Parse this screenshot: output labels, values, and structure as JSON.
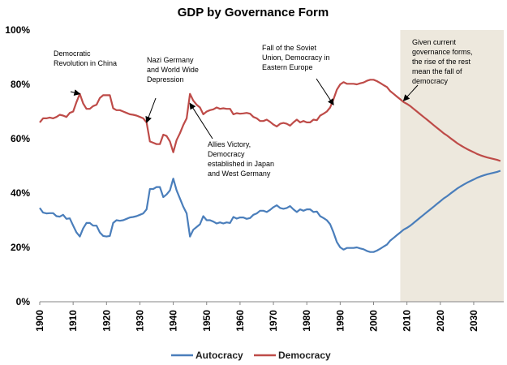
{
  "chart_data": {
    "type": "line",
    "title": "GDP by Governance Form",
    "xlabel": "",
    "ylabel": "",
    "xlim": [
      1900,
      2039
    ],
    "ylim": [
      0,
      100
    ],
    "y_tick_labels": [
      "0%",
      "20%",
      "40%",
      "60%",
      "80%",
      "100%"
    ],
    "y_tick_values": [
      0,
      20,
      40,
      60,
      80,
      100
    ],
    "x_tick_labels": [
      "1900",
      "1910",
      "1920",
      "1930",
      "1940",
      "1950",
      "1960",
      "1970",
      "1980",
      "1990",
      "2000",
      "2010",
      "2020",
      "2030"
    ],
    "x_tick_values": [
      1900,
      1910,
      1920,
      1930,
      1940,
      1950,
      1960,
      1970,
      1980,
      1990,
      2000,
      2010,
      2020,
      2030
    ],
    "grid": false,
    "legend_position": "bottom",
    "shaded_region": {
      "from": 2008,
      "to": 2039,
      "color": "#ede8dd"
    },
    "series": [
      {
        "name": "Autocracy",
        "color": "#4a7ebb",
        "points": [
          [
            1900,
            34.5
          ],
          [
            1901,
            32.8
          ],
          [
            1902,
            32.5
          ],
          [
            1903,
            32.6
          ],
          [
            1904,
            32.6
          ],
          [
            1905,
            31.5
          ],
          [
            1906,
            31.3
          ],
          [
            1907,
            32.0
          ],
          [
            1908,
            30.5
          ],
          [
            1909,
            30.7
          ],
          [
            1910,
            28.0
          ],
          [
            1911,
            25.5
          ],
          [
            1912,
            24.0
          ],
          [
            1913,
            27.0
          ],
          [
            1914,
            29.0
          ],
          [
            1915,
            29.0
          ],
          [
            1916,
            28.0
          ],
          [
            1917,
            28.0
          ],
          [
            1918,
            25.5
          ],
          [
            1919,
            24.2
          ],
          [
            1920,
            24.0
          ],
          [
            1921,
            24.2
          ],
          [
            1922,
            29.0
          ],
          [
            1923,
            30.0
          ],
          [
            1924,
            29.8
          ],
          [
            1925,
            30.0
          ],
          [
            1926,
            30.5
          ],
          [
            1927,
            31.0
          ],
          [
            1928,
            31.2
          ],
          [
            1929,
            31.5
          ],
          [
            1930,
            32.0
          ],
          [
            1931,
            32.5
          ],
          [
            1932,
            34.0
          ],
          [
            1933,
            41.5
          ],
          [
            1934,
            41.5
          ],
          [
            1935,
            42.2
          ],
          [
            1936,
            42.2
          ],
          [
            1937,
            38.5
          ],
          [
            1938,
            39.5
          ],
          [
            1939,
            41.0
          ],
          [
            1940,
            45.3
          ],
          [
            1941,
            41.0
          ],
          [
            1942,
            38.0
          ],
          [
            1943,
            35.0
          ],
          [
            1944,
            32.5
          ],
          [
            1945,
            24.0
          ],
          [
            1946,
            26.5
          ],
          [
            1947,
            27.5
          ],
          [
            1948,
            28.5
          ],
          [
            1949,
            31.5
          ],
          [
            1950,
            30.0
          ],
          [
            1951,
            30.0
          ],
          [
            1952,
            29.5
          ],
          [
            1953,
            28.8
          ],
          [
            1954,
            29.2
          ],
          [
            1955,
            28.8
          ],
          [
            1956,
            29.2
          ],
          [
            1957,
            29.0
          ],
          [
            1958,
            31.2
          ],
          [
            1959,
            30.6
          ],
          [
            1960,
            31.0
          ],
          [
            1961,
            31.0
          ],
          [
            1962,
            30.5
          ],
          [
            1963,
            30.8
          ],
          [
            1964,
            32.0
          ],
          [
            1965,
            32.5
          ],
          [
            1966,
            33.5
          ],
          [
            1967,
            33.5
          ],
          [
            1968,
            33.0
          ],
          [
            1969,
            33.8
          ],
          [
            1970,
            34.8
          ],
          [
            1971,
            35.5
          ],
          [
            1972,
            34.5
          ],
          [
            1973,
            34.2
          ],
          [
            1974,
            34.5
          ],
          [
            1975,
            35.2
          ],
          [
            1976,
            34.0
          ],
          [
            1977,
            33.0
          ],
          [
            1978,
            34.0
          ],
          [
            1979,
            33.5
          ],
          [
            1980,
            34.0
          ],
          [
            1981,
            34.0
          ],
          [
            1982,
            33.0
          ],
          [
            1983,
            33.2
          ],
          [
            1984,
            31.5
          ],
          [
            1985,
            30.8
          ],
          [
            1986,
            30.0
          ],
          [
            1987,
            28.5
          ],
          [
            1988,
            25.5
          ],
          [
            1989,
            22.0
          ],
          [
            1990,
            20.0
          ],
          [
            1991,
            19.2
          ],
          [
            1992,
            19.8
          ],
          [
            1993,
            19.8
          ],
          [
            1994,
            19.8
          ],
          [
            1995,
            20.0
          ],
          [
            1996,
            19.6
          ],
          [
            1997,
            19.3
          ],
          [
            1998,
            18.7
          ],
          [
            1999,
            18.3
          ],
          [
            2000,
            18.3
          ],
          [
            2001,
            18.8
          ],
          [
            2002,
            19.5
          ],
          [
            2003,
            20.3
          ],
          [
            2004,
            21.0
          ],
          [
            2005,
            22.5
          ],
          [
            2006,
            23.5
          ],
          [
            2007,
            24.5
          ],
          [
            2008,
            25.5
          ],
          [
            2009,
            26.5
          ],
          [
            2010,
            27.2
          ],
          [
            2011,
            28.0
          ],
          [
            2012,
            29.0
          ],
          [
            2013,
            30.0
          ],
          [
            2014,
            31.0
          ],
          [
            2015,
            32.0
          ],
          [
            2016,
            33.0
          ],
          [
            2017,
            34.0
          ],
          [
            2018,
            35.0
          ],
          [
            2019,
            36.0
          ],
          [
            2020,
            37.0
          ],
          [
            2021,
            38.0
          ],
          [
            2022,
            38.8
          ],
          [
            2023,
            39.8
          ],
          [
            2024,
            40.7
          ],
          [
            2025,
            41.6
          ],
          [
            2026,
            42.4
          ],
          [
            2027,
            43.1
          ],
          [
            2028,
            43.8
          ],
          [
            2029,
            44.4
          ],
          [
            2030,
            45.0
          ],
          [
            2031,
            45.6
          ],
          [
            2032,
            46.1
          ],
          [
            2033,
            46.5
          ],
          [
            2034,
            46.9
          ],
          [
            2035,
            47.2
          ],
          [
            2036,
            47.5
          ],
          [
            2037,
            47.8
          ],
          [
            2038,
            48.2
          ]
        ]
      },
      {
        "name": "Democracy",
        "color": "#be4b48",
        "points": [
          [
            1900,
            66.0
          ],
          [
            1901,
            67.5
          ],
          [
            1902,
            67.5
          ],
          [
            1903,
            67.8
          ],
          [
            1904,
            67.5
          ],
          [
            1905,
            68.0
          ],
          [
            1906,
            68.8
          ],
          [
            1907,
            68.5
          ],
          [
            1908,
            68.0
          ],
          [
            1909,
            69.5
          ],
          [
            1910,
            70.0
          ],
          [
            1911,
            73.5
          ],
          [
            1912,
            76.5
          ],
          [
            1913,
            73.0
          ],
          [
            1914,
            71.0
          ],
          [
            1915,
            71.0
          ],
          [
            1916,
            72.0
          ],
          [
            1917,
            72.5
          ],
          [
            1918,
            75.0
          ],
          [
            1919,
            76.0
          ],
          [
            1920,
            76.0
          ],
          [
            1921,
            76.0
          ],
          [
            1922,
            71.2
          ],
          [
            1923,
            70.5
          ],
          [
            1924,
            70.5
          ],
          [
            1925,
            70.0
          ],
          [
            1926,
            69.5
          ],
          [
            1927,
            69.0
          ],
          [
            1928,
            68.8
          ],
          [
            1929,
            68.5
          ],
          [
            1930,
            68.0
          ],
          [
            1931,
            67.5
          ],
          [
            1932,
            66.0
          ],
          [
            1933,
            59.0
          ],
          [
            1934,
            58.5
          ],
          [
            1935,
            58.0
          ],
          [
            1936,
            58.0
          ],
          [
            1937,
            61.5
          ],
          [
            1938,
            61.0
          ],
          [
            1939,
            59.0
          ],
          [
            1940,
            55.0
          ],
          [
            1941,
            59.5
          ],
          [
            1942,
            62.0
          ],
          [
            1943,
            65.0
          ],
          [
            1944,
            67.5
          ],
          [
            1945,
            76.5
          ],
          [
            1946,
            74.0
          ],
          [
            1947,
            72.5
          ],
          [
            1948,
            71.5
          ],
          [
            1949,
            69.0
          ],
          [
            1950,
            70.0
          ],
          [
            1951,
            70.5
          ],
          [
            1952,
            70.8
          ],
          [
            1953,
            71.5
          ],
          [
            1954,
            71.0
          ],
          [
            1955,
            71.2
          ],
          [
            1956,
            71.0
          ],
          [
            1957,
            71.0
          ],
          [
            1958,
            69.0
          ],
          [
            1959,
            69.4
          ],
          [
            1960,
            69.2
          ],
          [
            1961,
            69.3
          ],
          [
            1962,
            69.5
          ],
          [
            1963,
            69.2
          ],
          [
            1964,
            68.0
          ],
          [
            1965,
            67.5
          ],
          [
            1966,
            66.5
          ],
          [
            1967,
            66.5
          ],
          [
            1968,
            67.0
          ],
          [
            1969,
            66.2
          ],
          [
            1970,
            65.2
          ],
          [
            1971,
            64.5
          ],
          [
            1972,
            65.5
          ],
          [
            1973,
            65.8
          ],
          [
            1974,
            65.5
          ],
          [
            1975,
            64.8
          ],
          [
            1976,
            66.0
          ],
          [
            1977,
            67.0
          ],
          [
            1978,
            66.0
          ],
          [
            1979,
            66.5
          ],
          [
            1980,
            66.0
          ],
          [
            1981,
            66.0
          ],
          [
            1982,
            67.0
          ],
          [
            1983,
            66.8
          ],
          [
            1984,
            68.5
          ],
          [
            1985,
            69.2
          ],
          [
            1986,
            70.0
          ],
          [
            1987,
            71.5
          ],
          [
            1988,
            74.5
          ],
          [
            1989,
            78.0
          ],
          [
            1990,
            80.0
          ],
          [
            1991,
            80.8
          ],
          [
            1992,
            80.2
          ],
          [
            1993,
            80.2
          ],
          [
            1994,
            80.2
          ],
          [
            1995,
            80.0
          ],
          [
            1996,
            80.4
          ],
          [
            1997,
            80.7
          ],
          [
            1998,
            81.3
          ],
          [
            1999,
            81.7
          ],
          [
            2000,
            81.7
          ],
          [
            2001,
            81.2
          ],
          [
            2002,
            80.5
          ],
          [
            2003,
            79.7
          ],
          [
            2004,
            79.0
          ],
          [
            2005,
            77.5
          ],
          [
            2006,
            76.5
          ],
          [
            2007,
            75.5
          ],
          [
            2008,
            74.5
          ],
          [
            2009,
            73.5
          ],
          [
            2010,
            72.8
          ],
          [
            2011,
            72.0
          ],
          [
            2012,
            71.0
          ],
          [
            2013,
            70.0
          ],
          [
            2014,
            69.0
          ],
          [
            2015,
            68.0
          ],
          [
            2016,
            67.0
          ],
          [
            2017,
            66.0
          ],
          [
            2018,
            65.0
          ],
          [
            2019,
            64.0
          ],
          [
            2020,
            63.0
          ],
          [
            2021,
            62.0
          ],
          [
            2022,
            61.2
          ],
          [
            2023,
            60.2
          ],
          [
            2024,
            59.3
          ],
          [
            2025,
            58.4
          ],
          [
            2026,
            57.6
          ],
          [
            2027,
            56.9
          ],
          [
            2028,
            56.2
          ],
          [
            2029,
            55.6
          ],
          [
            2030,
            55.0
          ],
          [
            2031,
            54.4
          ],
          [
            2032,
            53.9
          ],
          [
            2033,
            53.5
          ],
          [
            2034,
            53.1
          ],
          [
            2035,
            52.8
          ],
          [
            2036,
            52.5
          ],
          [
            2037,
            52.2
          ],
          [
            2038,
            51.8
          ]
        ]
      }
    ],
    "annotations": [
      {
        "lines": [
          "Democratic",
          "Revolution in China"
        ],
        "arrow_year": 1912,
        "arrow_value": 76.5
      },
      {
        "lines": [
          "Nazi Germany",
          "and World Wide",
          "Depression"
        ],
        "arrow_year": 1932,
        "arrow_value": 66.0
      },
      {
        "lines": [
          "Allies Victory,",
          "Democracy",
          "established in Japan",
          "and West Germany"
        ],
        "arrow_year": 1945,
        "arrow_value": 73.0
      },
      {
        "lines": [
          "Fall of the Soviet",
          "Union, Democracy in",
          "Eastern Europe"
        ],
        "arrow_year": 1988,
        "arrow_value": 72.5
      },
      {
        "lines": [
          "Given current",
          "governance forms,",
          "the rise of the rest",
          "mean the fall of",
          "democracy"
        ],
        "arrow_year": 2009,
        "arrow_value": 74.0
      }
    ]
  }
}
